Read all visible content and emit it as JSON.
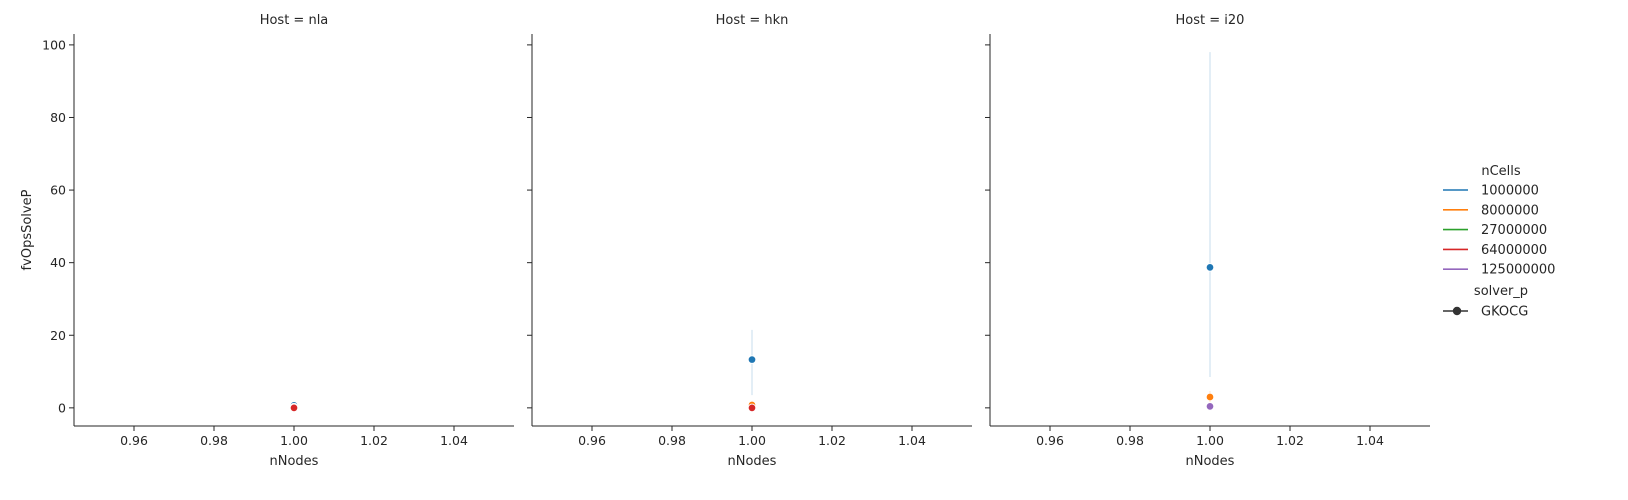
{
  "chart_data": {
    "type": "line",
    "ylabel": "fvOpsSolveP",
    "xlabel": "nNodes",
    "xlim": [
      0.945,
      1.055
    ],
    "ylim": [
      -5,
      103
    ],
    "xticks": [
      "0.96",
      "0.98",
      "1.00",
      "1.02",
      "1.04"
    ],
    "xtick_values": [
      0.96,
      0.98,
      1.0,
      1.02,
      1.04
    ],
    "yticks": [
      "0",
      "20",
      "40",
      "60",
      "80",
      "100"
    ],
    "ytick_values": [
      0,
      20,
      40,
      60,
      80,
      100
    ],
    "grid": false,
    "legend_placement": "right",
    "legend": {
      "hue_title": "nCells",
      "hue_entries": [
        {
          "label": "1000000",
          "color": "#1f77b4"
        },
        {
          "label": "8000000",
          "color": "#ff7f0e"
        },
        {
          "label": "27000000",
          "color": "#2ca02c"
        },
        {
          "label": "64000000",
          "color": "#d62728"
        },
        {
          "label": "125000000",
          "color": "#9467bd"
        }
      ],
      "style_title": "solver_p",
      "style_entries": [
        {
          "label": "GKOCG",
          "color": "#333333"
        }
      ]
    },
    "panels": [
      {
        "title": "Host = nla",
        "series": [
          {
            "nCells": "1000000",
            "x": [
              1.0
            ],
            "y": [
              0.7
            ],
            "ci": [
              0.4,
              1.0
            ]
          },
          {
            "nCells": "8000000",
            "x": [
              1.0
            ],
            "y": [
              0.2
            ],
            "ci": [
              0.1,
              0.3
            ]
          },
          {
            "nCells": "64000000",
            "x": [
              1.0
            ],
            "y": [
              0.0
            ],
            "ci": [
              0.0,
              0.05
            ]
          }
        ]
      },
      {
        "title": "Host = hkn",
        "series": [
          {
            "nCells": "1000000",
            "x": [
              1.0
            ],
            "y": [
              13.3
            ],
            "ci": [
              3.5,
              21.5
            ]
          },
          {
            "nCells": "8000000",
            "x": [
              1.0
            ],
            "y": [
              0.8
            ],
            "ci": [
              0.3,
              1.3
            ]
          },
          {
            "nCells": "64000000",
            "x": [
              1.0
            ],
            "y": [
              0.0
            ],
            "ci": [
              0.0,
              0.1
            ]
          }
        ]
      },
      {
        "title": "Host = i20",
        "series": [
          {
            "nCells": "1000000",
            "x": [
              1.0
            ],
            "y": [
              38.7
            ],
            "ci": [
              8.5,
              98.0
            ]
          },
          {
            "nCells": "8000000",
            "x": [
              1.0
            ],
            "y": [
              3.0
            ],
            "ci": [
              1.5,
              4.6
            ]
          },
          {
            "nCells": "125000000",
            "x": [
              1.0
            ],
            "y": [
              0.4
            ],
            "ci": [
              0.2,
              0.6
            ]
          }
        ]
      }
    ]
  }
}
